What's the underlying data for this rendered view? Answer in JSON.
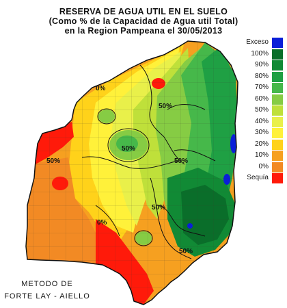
{
  "title": {
    "line1": "RESERVA DE AGUA UTIL EN EL SUELO",
    "line2": "(Como % de la Capacidad de Agua util Total)",
    "line3": "en la Region Pampeana el 30/05/2013"
  },
  "legend": [
    {
      "label": "Exceso",
      "color": "#0a1fd8"
    },
    {
      "label": "100%",
      "color": "#0a6e2a"
    },
    {
      "label": "90%",
      "color": "#118a35"
    },
    {
      "label": "80%",
      "color": "#1fa044"
    },
    {
      "label": "70%",
      "color": "#46b84a"
    },
    {
      "label": "60%",
      "color": "#86cc44"
    },
    {
      "label": "50%",
      "color": "#bfe03a"
    },
    {
      "label": "40%",
      "color": "#e9f04a"
    },
    {
      "label": "30%",
      "color": "#fff13a"
    },
    {
      "label": "20%",
      "color": "#ffd21a"
    },
    {
      "label": "10%",
      "color": "#f6a020"
    },
    {
      "label": "0%",
      "color": "#f28a24"
    },
    {
      "label": "Sequía",
      "color": "#ff1a0a"
    }
  ],
  "contour_labels": [
    "0%",
    "50%",
    "50%",
    "50%",
    "50%",
    "50%",
    "0%",
    "50%"
  ],
  "method": {
    "line1": "METODO DE",
    "line2": "FORTE LAY - AIELLO"
  }
}
